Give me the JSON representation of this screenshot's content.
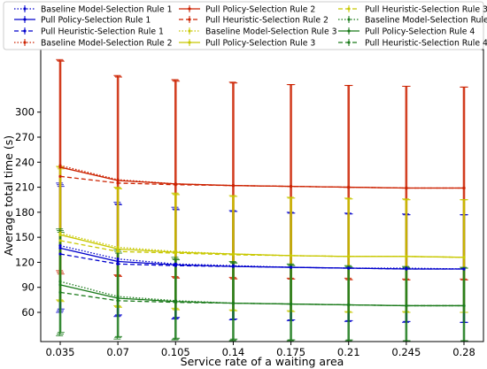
{
  "chart_data": {
    "type": "line",
    "xlabel": "Service rate of a waiting area",
    "ylabel": "Average total time (s)",
    "x": [
      0.035,
      0.07,
      0.105,
      0.14,
      0.175,
      0.21,
      0.245,
      0.28
    ],
    "x_tick_labels": [
      "0.035",
      "0.07",
      "0.105",
      "0.14",
      "0.175",
      "0.21",
      "0.245",
      "0.28"
    ],
    "y_ticks": [
      60,
      90,
      120,
      150,
      180,
      210,
      240,
      270,
      300
    ],
    "y_tick_labels": [
      "60",
      "90",
      "120",
      "150",
      "180",
      "210",
      "240",
      "270",
      "300"
    ],
    "ylim": [
      25,
      375
    ],
    "grid": false,
    "legend_position": "top",
    "legend_columns": 3,
    "series": [
      {
        "name": "Baseline Model-Selection Rule 1",
        "color": "#0000cc",
        "dash": "dotted",
        "values": [
          140,
          124,
          118,
          116,
          114,
          113,
          113,
          112
        ],
        "err_low": [
          60,
          55,
          52,
          51,
          50,
          49,
          48,
          48
        ],
        "err_high": [
          215,
          192,
          186,
          182,
          180,
          179,
          178,
          177
        ]
      },
      {
        "name": "Pull Policy-Selection Rule 1",
        "color": "#0000cc",
        "dash": "solid",
        "values": [
          137,
          121,
          117,
          115,
          114,
          113,
          112,
          112
        ],
        "err_low": [
          62,
          56,
          53,
          52,
          51,
          50,
          49,
          48
        ],
        "err_high": [
          213,
          190,
          184,
          181,
          179,
          178,
          177,
          177
        ]
      },
      {
        "name": "Pull Heuristic-Selection Rule 1",
        "color": "#0000cc",
        "dash": "dashed",
        "values": [
          130,
          118,
          116,
          115,
          114,
          113,
          112,
          112
        ],
        "err_low": [
          64,
          57,
          54,
          52,
          51,
          50,
          49,
          48
        ],
        "err_high": [
          211,
          189,
          183,
          181,
          179,
          178,
          177,
          177
        ]
      },
      {
        "name": "Baseline Model-Selection Rule 2",
        "color": "#cc2200",
        "dash": "dotted",
        "values": [
          236,
          219,
          214,
          212,
          211,
          210,
          209,
          209
        ],
        "err_low": [
          110,
          105,
          103,
          102,
          101,
          101,
          100,
          100
        ],
        "err_high": [
          363,
          344,
          339,
          336,
          333,
          332,
          331,
          330
        ]
      },
      {
        "name": "Pull Policy-Selection Rule 2",
        "color": "#cc2200",
        "dash": "solid",
        "values": [
          234,
          218,
          214,
          212,
          211,
          210,
          209,
          209
        ],
        "err_low": [
          108,
          104,
          102,
          101,
          100,
          100,
          99,
          99
        ],
        "err_high": [
          362,
          343,
          338,
          335,
          333,
          332,
          331,
          330
        ]
      },
      {
        "name": "Pull Heuristic-Selection Rule 2",
        "color": "#cc2200",
        "dash": "dashed",
        "values": [
          223,
          215,
          213,
          212,
          211,
          210,
          209,
          209
        ],
        "err_low": [
          106,
          103,
          101,
          100,
          100,
          99,
          99,
          99
        ],
        "err_high": [
          361,
          342,
          337,
          335,
          333,
          332,
          331,
          330
        ]
      },
      {
        "name": "Baseline Model-Selection Rule 3",
        "color": "#c8c800",
        "dash": "dotted",
        "values": [
          155,
          138,
          133,
          130,
          128,
          127,
          127,
          126
        ],
        "err_low": [
          75,
          68,
          65,
          63,
          62,
          61,
          61,
          60
        ],
        "err_high": [
          235,
          210,
          203,
          200,
          198,
          197,
          196,
          195
        ]
      },
      {
        "name": "Pull Policy-Selection Rule 3",
        "color": "#c8c800",
        "dash": "solid",
        "values": [
          153,
          136,
          132,
          130,
          128,
          127,
          127,
          126
        ],
        "err_low": [
          74,
          67,
          64,
          62,
          61,
          60,
          60,
          60
        ],
        "err_high": [
          234,
          209,
          202,
          199,
          197,
          196,
          195,
          195
        ]
      },
      {
        "name": "Pull Heuristic-Selection Rule 3",
        "color": "#c8c800",
        "dash": "dashed",
        "values": [
          146,
          133,
          131,
          129,
          128,
          127,
          127,
          126
        ],
        "err_low": [
          73,
          66,
          63,
          62,
          61,
          60,
          60,
          60
        ],
        "err_high": [
          232,
          208,
          201,
          199,
          197,
          196,
          195,
          195
        ]
      },
      {
        "name": "Baseline Model-Selection Rule 4",
        "color": "#1a7a1a",
        "dash": "dotted",
        "values": [
          97,
          79,
          74,
          71,
          70,
          69,
          68,
          68
        ],
        "err_low": [
          32,
          28,
          27,
          26,
          26,
          25,
          25,
          25
        ],
        "err_high": [
          160,
          135,
          126,
          121,
          118,
          116,
          115,
          114
        ]
      },
      {
        "name": "Pull Policy-Selection Rule 4",
        "color": "#1a7a1a",
        "dash": "solid",
        "values": [
          93,
          77,
          73,
          71,
          70,
          69,
          68,
          68
        ],
        "err_low": [
          34,
          30,
          28,
          27,
          27,
          26,
          26,
          26
        ],
        "err_high": [
          158,
          133,
          124,
          120,
          117,
          115,
          114,
          113
        ]
      },
      {
        "name": "Pull Heuristic-Selection Rule 4",
        "color": "#1a7a1a",
        "dash": "dashed",
        "values": [
          84,
          74,
          72,
          71,
          70,
          69,
          68,
          68
        ],
        "err_low": [
          36,
          31,
          29,
          28,
          27,
          27,
          26,
          26
        ],
        "err_high": [
          156,
          131,
          123,
          119,
          116,
          114,
          113,
          113
        ]
      }
    ]
  }
}
